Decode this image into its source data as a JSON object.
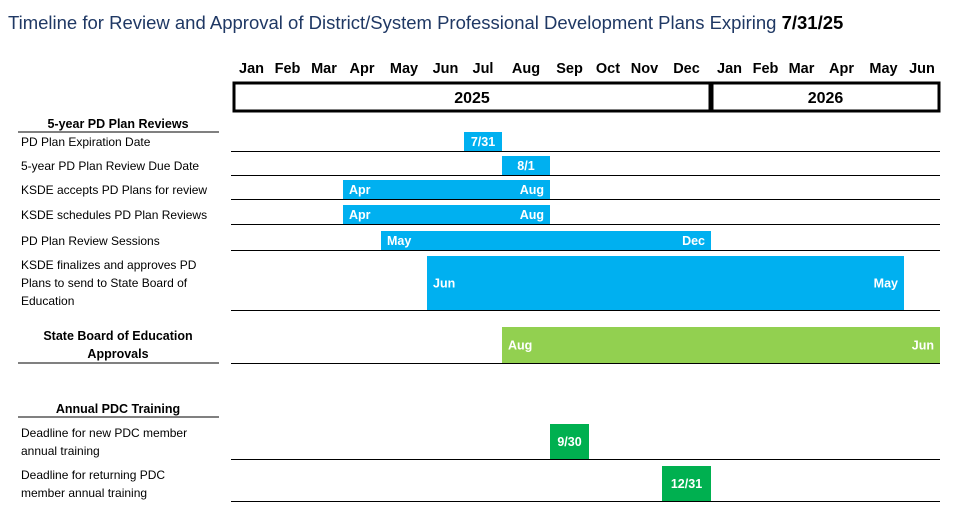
{
  "title": {
    "text": "Timeline for Review and Approval of District/System Professional Development Plans Expiring ",
    "date": "7/31/25"
  },
  "colors": {
    "blue": "#00b0f0",
    "light_green": "#92d050",
    "green": "#00b050"
  },
  "chart_data": {
    "type": "gantt",
    "months": [
      "Jan",
      "Feb",
      "Mar",
      "Apr",
      "May",
      "Jun",
      "Jul",
      "Aug",
      "Sep",
      "Oct",
      "Nov",
      "Dec",
      "Jan",
      "Feb",
      "Mar",
      "Apr",
      "May",
      "Jun"
    ],
    "years": [
      {
        "label": "2025",
        "start": "2025-01",
        "end": "2025-12"
      },
      {
        "label": "2026",
        "start": "2026-01",
        "end": "2026-06"
      }
    ],
    "sections": [
      {
        "name": "5-year PD Plan Reviews",
        "rows": [
          {
            "label": [
              "PD Plan Expiration Date"
            ],
            "start": "2025-07",
            "end": "2025-07",
            "color": "blue",
            "start_label": "7/31",
            "end_label": ""
          },
          {
            "label": [
              "5-year PD Plan Review Due Date"
            ],
            "start": "2025-08",
            "end": "2025-08",
            "color": "blue",
            "start_label": "8/1",
            "end_label": ""
          },
          {
            "label": [
              "KSDE accepts PD Plans for review"
            ],
            "start": "2025-04",
            "end": "2025-08",
            "color": "blue",
            "start_label": "Apr",
            "end_label": "Aug"
          },
          {
            "label": [
              "KSDE schedules PD Plan Reviews"
            ],
            "start": "2025-04",
            "end": "2025-08",
            "color": "blue",
            "start_label": "Apr",
            "end_label": "Aug"
          },
          {
            "label": [
              "PD Plan Review Sessions"
            ],
            "start": "2025-05",
            "end": "2025-12",
            "color": "blue",
            "start_label": "May",
            "end_label": "Dec"
          },
          {
            "label": [
              "KSDE finalizes and approves PD",
              "Plans to send to State Board of",
              "Education"
            ],
            "start": "2025-06",
            "end": "2026-05",
            "color": "blue",
            "start_label": "Jun",
            "end_label": "May"
          }
        ]
      },
      {
        "name": "State Board of Education Approvals",
        "name_lines": [
          "State Board of Education",
          "Approvals"
        ],
        "rows": [
          {
            "label": [],
            "start": "2025-08",
            "end": "2026-06",
            "color": "light_green",
            "start_label": "Aug",
            "end_label": "Jun"
          }
        ]
      },
      {
        "name": "Annual PDC Training",
        "rows": [
          {
            "label": [
              "Deadline for new PDC member",
              "annual training"
            ],
            "start": "2025-09",
            "end": "2025-09",
            "color": "green",
            "start_label": "9/30",
            "end_label": ""
          },
          {
            "label": [
              "Deadline for returning PDC",
              "member annual training"
            ],
            "start": "2025-12",
            "end": "2025-12",
            "color": "green",
            "start_label": "12/31",
            "end_label": ""
          }
        ]
      }
    ]
  }
}
